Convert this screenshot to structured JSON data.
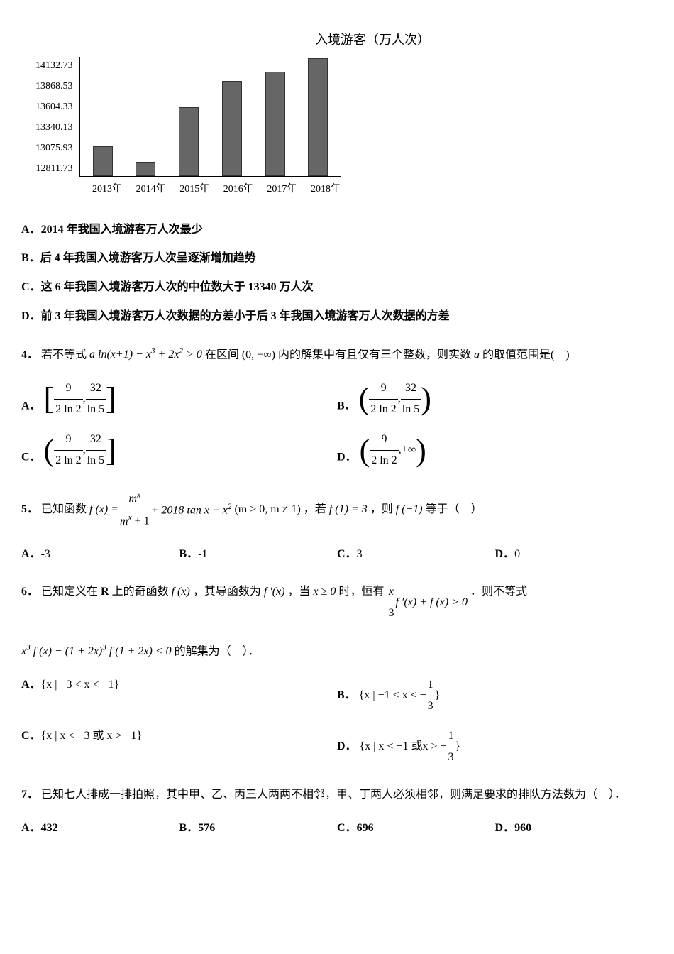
{
  "chart": {
    "type": "bar",
    "title": "入境游客（万人次）",
    "y_ticks": [
      "14132.73",
      "13868.53",
      "13604.33",
      "13340.13",
      "13075.93",
      "12811.73"
    ],
    "x_labels": [
      "2013年",
      "2014年",
      "2015年",
      "2016年",
      "2017年",
      "2018年"
    ],
    "bar_heights_pct": [
      25,
      12,
      58,
      80,
      88,
      99
    ],
    "bar_color": "#666666",
    "border_color": "#000000",
    "background_color": "#ffffff",
    "title_fontsize": 18,
    "label_fontsize": 14
  },
  "q_chart_options": {
    "A_prefix": "A．",
    "A": "2014 年我国入境游客万人次最少",
    "B_prefix": "B．",
    "B": "后 4 年我国入境游客万人次呈逐渐增加趋势",
    "C_prefix": "C．",
    "C": "这 6 年我国入境游客万人次的中位数大于 13340 万人次",
    "D_prefix": "D．",
    "D": "前 3 年我国入境游客万人次数据的方差小于后 3 年我国入境游客万人次数据的方差"
  },
  "q4": {
    "num": "4．",
    "text1": "若不等式 ",
    "expr": "a ln(x+1) − x³ + 2x² > 0",
    "text2": " 在区间 ",
    "interval": "(0, +∞)",
    "text3": " 内的解集中有且仅有三个整数，则实数 ",
    "avar": "a",
    "text4": " 的取值范围是(　)",
    "optA_label": "A．",
    "optB_label": "B．",
    "optC_label": "C．",
    "optD_label": "D．",
    "frac1_num": "9",
    "frac1_den": "2 ln 2",
    "frac2_num": "32",
    "frac2_den": "ln 5",
    "infty": "+∞"
  },
  "q5": {
    "num": "5．",
    "text1": "已知函数 ",
    "fx": "f (x) = ",
    "frac_num": "mˣ",
    "frac_den": "mˣ + 1",
    "plus_tan": " + 2018 tan x + x²",
    "cond": "(m > 0, m ≠ 1)",
    "text2": "，若 ",
    "f1": "f (1) = 3",
    "text3": "，则 ",
    "fm1": "f (−1)",
    "text4": "等于（　）",
    "A_label": "A．",
    "A": "-3",
    "B_label": "B．",
    "B": "-1",
    "C_label": "C．",
    "C": "3",
    "D_label": "D．",
    "D": "0"
  },
  "q6": {
    "num": "6．",
    "text1": "已知定义在 ",
    "R": "R",
    "text2": " 上的奇函数 ",
    "fx": "f (x)",
    "text3": "，其导函数为 ",
    "fpx": "f ′(x)",
    "text4": "，当 ",
    "xge0": "x ≥ 0",
    "text5": " 时，恒有 ",
    "frac_num": "x",
    "frac_den": "3",
    "ineq_tail": " f ′(x) + f (x) > 0",
    "text6": "．则不等式",
    "ineq2": "x³ f (x) − (1 + 2x)³ f (1 + 2x) < 0",
    "text7": " 的解集为（　）．",
    "A_label": "A．",
    "A": "{x | −3 < x < −1}",
    "B_label": "B．",
    "B_pre": "{x | −1 < x < − ",
    "B_frac_num": "1",
    "B_frac_den": "3",
    "B_post": "}",
    "C_label": "C．",
    "C": "{x | x < −3 或 x > −1}",
    "D_label": "D．",
    "D_pre": "{x | x < −1 或 ",
    "D_mid": "x > − ",
    "D_frac_num": "1",
    "D_frac_den": "3",
    "D_post": "}"
  },
  "q7": {
    "num": "7．",
    "text": "已知七人排成一排拍照，其中甲、乙、丙三人两两不相邻，甲、丁两人必须相邻，则满足要求的排队方法数为（　）．",
    "A_label": "A．",
    "A": "432",
    "B_label": "B．",
    "B": "576",
    "C_label": "C．",
    "C": "696",
    "D_label": "D．",
    "D": "960"
  }
}
